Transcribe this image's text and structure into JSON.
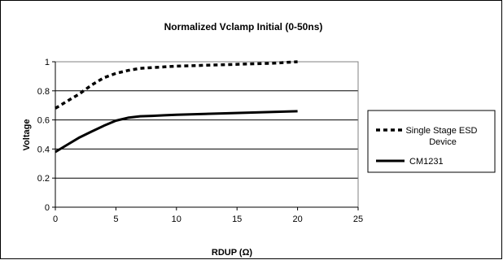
{
  "chart_data": {
    "type": "line",
    "title": "Normalized Vclamp Initial  (0-50ns)",
    "xlabel": "RDUP (Ω)",
    "ylabel": "Voltage",
    "xlim": [
      0,
      25
    ],
    "ylim": [
      0,
      1
    ],
    "x_ticks": [
      0,
      5,
      10,
      15,
      20,
      25
    ],
    "x_tick_labels": [
      "0",
      "5",
      "10",
      "15",
      "20",
      "25"
    ],
    "y_ticks": [
      0,
      0.2,
      0.4,
      0.6,
      0.8,
      1
    ],
    "y_tick_labels": [
      "0",
      "0.2",
      "0.4",
      "0.6",
      "0.8",
      "1"
    ],
    "grid": "horizontal",
    "legend_position": "right",
    "series": [
      {
        "name": "Single Stage ESD Device",
        "style": "dashed",
        "color": "#000000",
        "x": [
          0,
          1,
          2,
          3,
          4,
          5,
          6,
          7,
          8,
          9,
          10,
          12,
          14,
          16,
          18,
          20
        ],
        "y": [
          0.68,
          0.73,
          0.78,
          0.84,
          0.89,
          0.92,
          0.94,
          0.955,
          0.96,
          0.965,
          0.97,
          0.975,
          0.98,
          0.985,
          0.99,
          1.0
        ]
      },
      {
        "name": "CM1231",
        "style": "solid",
        "color": "#000000",
        "x": [
          0,
          1,
          2,
          3,
          4,
          5,
          6,
          7,
          8,
          9,
          10,
          12,
          14,
          16,
          18,
          20
        ],
        "y": [
          0.38,
          0.43,
          0.48,
          0.52,
          0.56,
          0.595,
          0.615,
          0.625,
          0.628,
          0.632,
          0.636,
          0.64,
          0.645,
          0.65,
          0.655,
          0.66
        ]
      }
    ]
  }
}
